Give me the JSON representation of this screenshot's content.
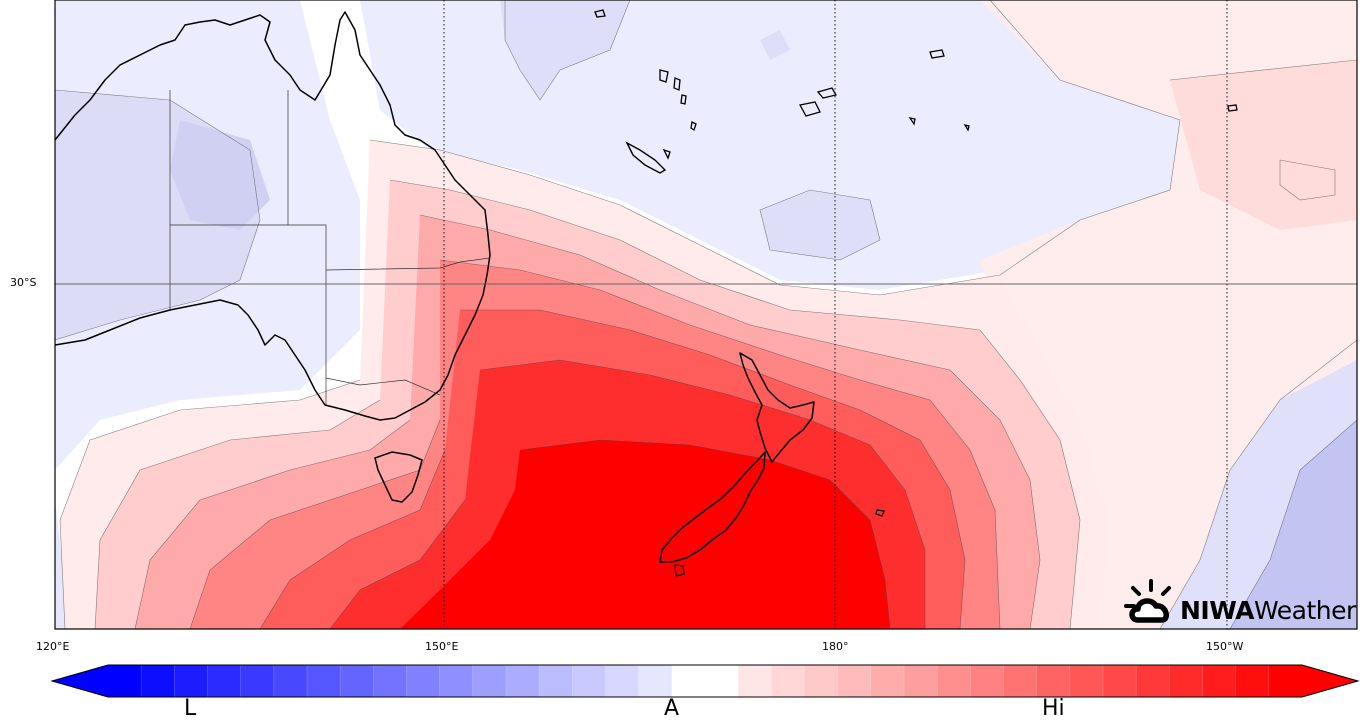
{
  "map": {
    "title": "",
    "latitude_labels": [
      {
        "text": "30°S"
      }
    ],
    "longitude_labels": [
      {
        "text": "120°E"
      },
      {
        "text": "150°E"
      },
      {
        "text": "180°"
      },
      {
        "text": "150°W"
      }
    ],
    "land_regions": [
      "Australia",
      "Tasmania",
      "New Zealand",
      "New Caledonia",
      "Vanuatu"
    ],
    "field": "anomaly",
    "max_anomaly_center": "south Tasman Sea / New Zealand",
    "colors": {
      "high": "#ff0000",
      "neutral": "#ffffff",
      "low": "#0000ff",
      "contour": "#333333",
      "coast": "#000000"
    }
  },
  "logo": {
    "part1": "NIWA",
    "part2": "Weather"
  },
  "colorbar": {
    "colors": [
      "#0000ff",
      "#0e0eff",
      "#1c1cff",
      "#2b2bff",
      "#3939ff",
      "#4848ff",
      "#5656ff",
      "#6464ff",
      "#7373ff",
      "#8181ff",
      "#8f8fff",
      "#9e9eff",
      "#acacff",
      "#bbbbff",
      "#c9c9ff",
      "#d7d7ff",
      "#e6e6ff",
      "#ffffff",
      "#ffffff",
      "#ffe6e6",
      "#ffd7d7",
      "#ffc9c9",
      "#ffbbbb",
      "#ffacac",
      "#ff9e9e",
      "#ff8f8f",
      "#ff8181",
      "#ff7373",
      "#ff6464",
      "#ff5656",
      "#ff4848",
      "#ff3939",
      "#ff2b2b",
      "#ff1c1c",
      "#ff0e0e",
      "#ff0000"
    ],
    "labels": {
      "low": "L",
      "avg": "A",
      "high": "Hi"
    }
  }
}
